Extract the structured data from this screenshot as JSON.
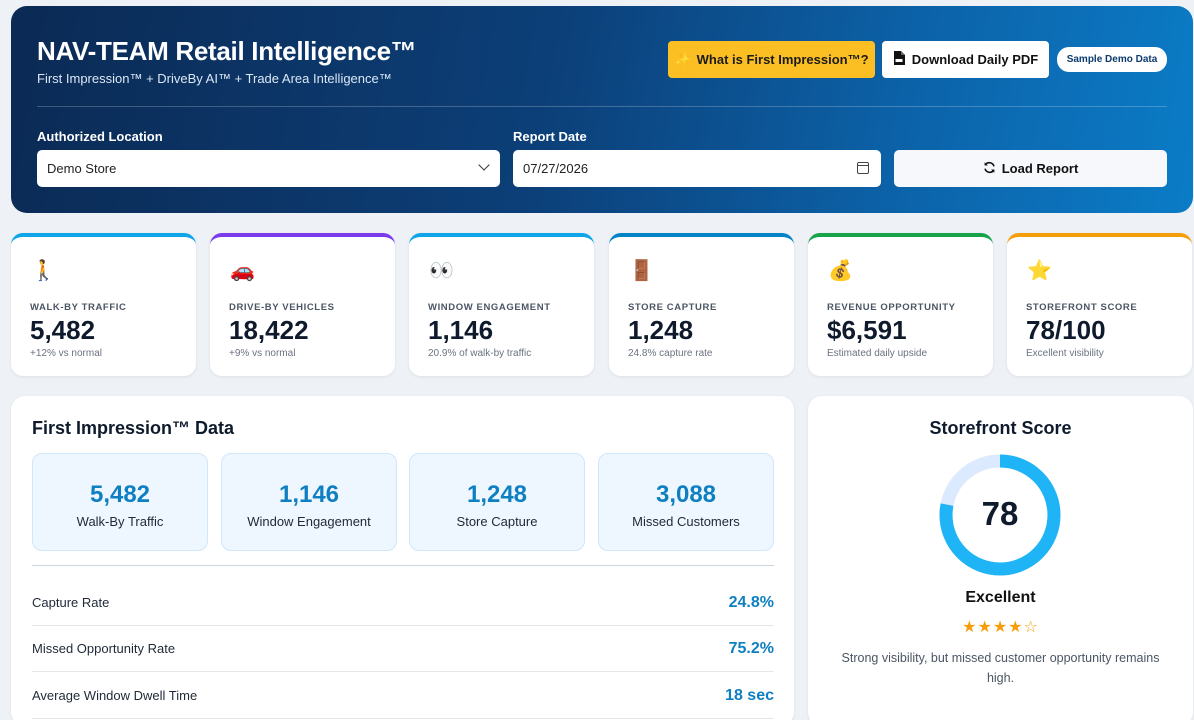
{
  "header": {
    "title": "NAV-TEAM Retail Intelligence™",
    "subtitle": "First Impression™ + DriveBy AI™ + Trade Area Intelligence™",
    "what_button": "What is First Impression™?",
    "what_icon": "✨",
    "pdf_button": "Download Daily PDF",
    "demo_badge": "Sample Demo Data",
    "location_label": "Authorized Location",
    "location_value": "Demo Store",
    "date_label": "Report Date",
    "date_value": "07/27/2026",
    "load_button": "Load Report"
  },
  "kpis": [
    {
      "icon": "🚶",
      "label": "WALK-BY TRAFFIC",
      "value": "5,482",
      "sub": "+12% vs normal",
      "accent": "#0ea5e9"
    },
    {
      "icon": "🚗",
      "label": "DRIVE-BY VEHICLES",
      "value": "18,422",
      "sub": "+9% vs normal",
      "accent": "#7c3aed"
    },
    {
      "icon": "👀",
      "label": "WINDOW ENGAGEMENT",
      "value": "1,146",
      "sub": "20.9% of walk-by traffic",
      "accent": "#0ea5e9"
    },
    {
      "icon": "🚪",
      "label": "STORE CAPTURE",
      "value": "1,248",
      "sub": "24.8% capture rate",
      "accent": "#0284c7"
    },
    {
      "icon": "💰",
      "label": "REVENUE OPPORTUNITY",
      "value": "$6,591",
      "sub": "Estimated daily upside",
      "accent": "#16a34a"
    },
    {
      "icon": "⭐",
      "label": "STOREFRONT SCORE",
      "value": "78/100",
      "sub": "Excellent visibility",
      "accent": "#f59e0b"
    }
  ],
  "first_impression": {
    "title": "First Impression™ Data",
    "stats": [
      {
        "value": "5,482",
        "label": "Walk-By Traffic"
      },
      {
        "value": "1,146",
        "label": "Window Engagement"
      },
      {
        "value": "1,248",
        "label": "Store Capture"
      },
      {
        "value": "3,088",
        "label": "Missed Customers"
      }
    ],
    "rows": [
      {
        "label": "Capture Rate",
        "value": "24.8%"
      },
      {
        "label": "Missed Opportunity Rate",
        "value": "75.2%"
      },
      {
        "label": "Average Window Dwell Time",
        "value": "18 sec"
      }
    ]
  },
  "storefront": {
    "title": "Storefront Score",
    "score": "78",
    "score_fraction": 0.78,
    "rating": "Excellent",
    "stars": "★★★★☆",
    "description": "Strong visibility, but missed customer opportunity remains high.",
    "ring_color": "#1eb4f5",
    "track_color": "#dbeafe"
  }
}
